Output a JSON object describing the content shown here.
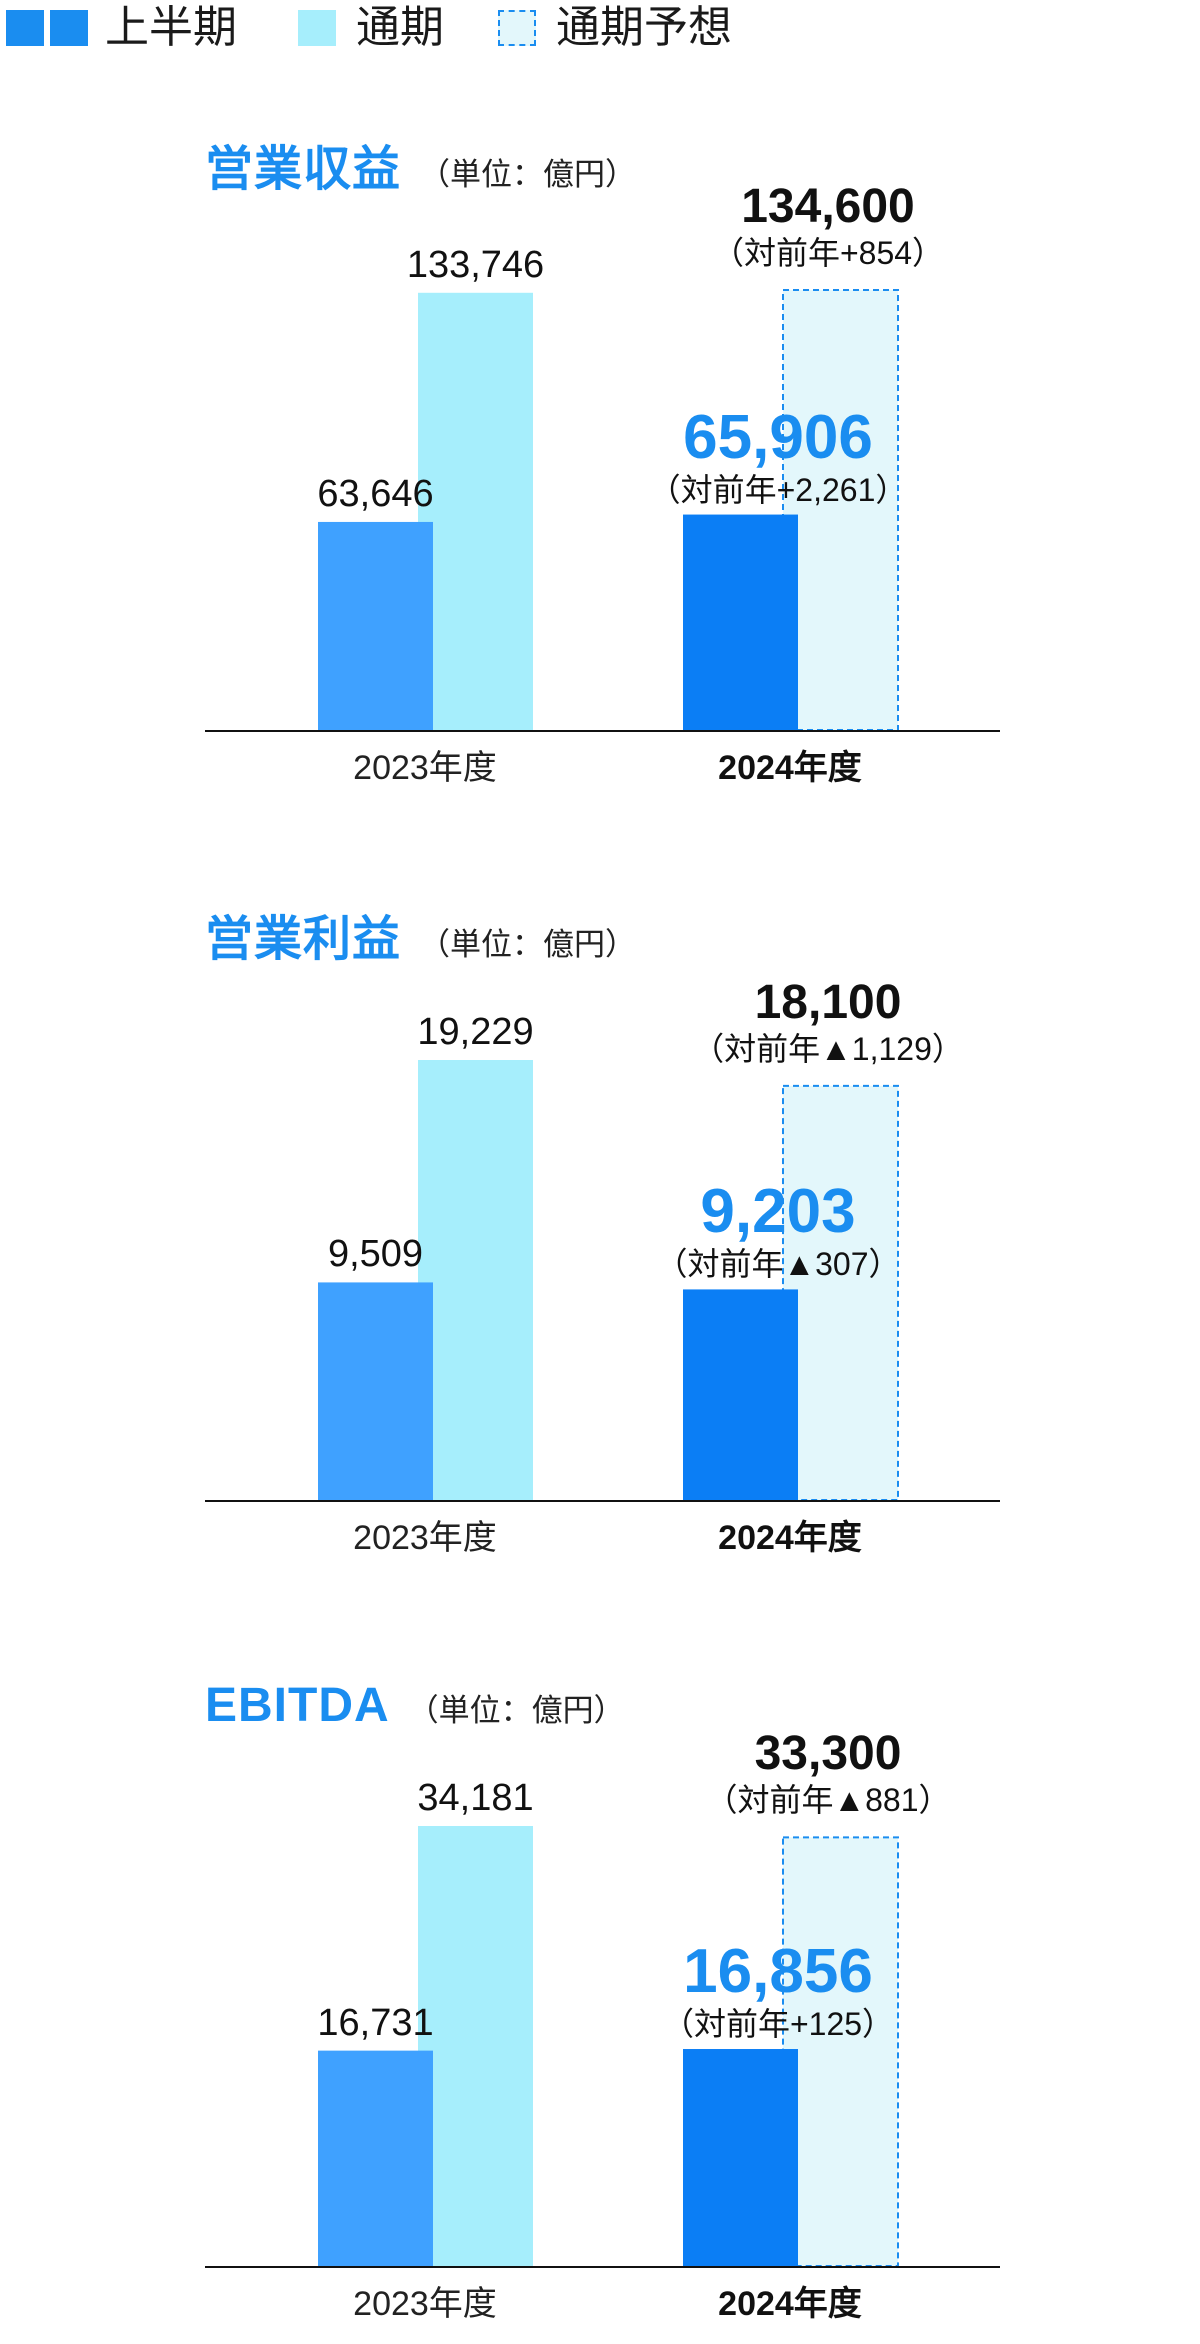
{
  "legend": [
    {
      "label": "上半期",
      "color": "#1a8df0",
      "style": "double-square"
    },
    {
      "label": "通期",
      "color": "#a6eefc",
      "style": "solid"
    },
    {
      "label": "通期予想",
      "color": "#e3f7fb",
      "style": "dashed",
      "border": "#1a8df0"
    }
  ],
  "colors": {
    "prev_half": "#3fa1ff",
    "prev_full": "#a6eefc",
    "curr_half": "#0b7ef5",
    "curr_forecast": "#e3f7fb",
    "forecast_border": "#1a8df0",
    "title": "#1a8df0"
  },
  "chart_data": [
    {
      "type": "bar",
      "title": "営業収益",
      "unit": "（単位：億円）",
      "categories": [
        "2023年度",
        "2024年度"
      ],
      "ylim": [
        0,
        134600
      ],
      "prev": {
        "half": 63646,
        "full": 133746,
        "half_label": "63,646",
        "full_label": "133,746"
      },
      "curr": {
        "half": 65906,
        "forecast": 134600,
        "half_label": "65,906",
        "half_diff": "（対前年+2,261）",
        "forecast_label": "134,600",
        "forecast_diff": "（対前年+854）"
      }
    },
    {
      "type": "bar",
      "title": "営業利益",
      "unit": "（単位：億円）",
      "categories": [
        "2023年度",
        "2024年度"
      ],
      "ylim": [
        0,
        19229
      ],
      "prev": {
        "half": 9509,
        "full": 19229,
        "half_label": "9,509",
        "full_label": "19,229"
      },
      "curr": {
        "half": 9203,
        "forecast": 18100,
        "half_label": "9,203",
        "half_diff": "（対前年▲307）",
        "forecast_label": "18,100",
        "forecast_diff": "（対前年▲1,129）"
      }
    },
    {
      "type": "bar",
      "title": "EBITDA",
      "unit": "（単位：億円）",
      "categories": [
        "2023年度",
        "2024年度"
      ],
      "ylim": [
        0,
        34181
      ],
      "prev": {
        "half": 16731,
        "full": 34181,
        "half_label": "16,731",
        "full_label": "34,181"
      },
      "curr": {
        "half": 16856,
        "forecast": 33300,
        "half_label": "16,856",
        "half_diff": "（対前年+125）",
        "forecast_label": "33,300",
        "forecast_diff": "（対前年▲881）"
      }
    }
  ]
}
